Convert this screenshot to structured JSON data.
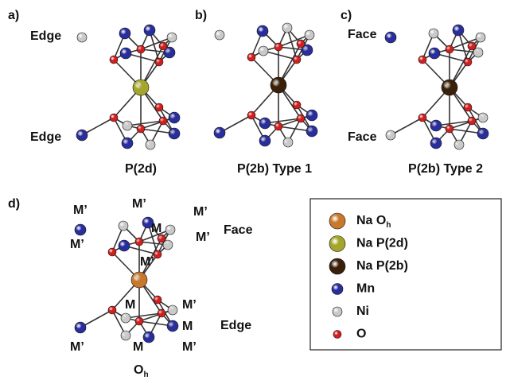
{
  "panels": [
    {
      "label": "a)",
      "caption": "P(2d)",
      "top_label": "Edge",
      "bottom_label": "Edge"
    },
    {
      "label": "b)",
      "caption": "P(2b) Type 1"
    },
    {
      "label": "c)",
      "caption": "P(2b) Type 2",
      "top_label": "Face",
      "bottom_label": "Face"
    },
    {
      "label": "d)",
      "caption": "O",
      "caption_subscript": "h",
      "top_label": "Face",
      "bottom_label": "Edge",
      "site_labels": [
        "M’",
        "M’",
        "M’",
        "M",
        "M’",
        "M’",
        "M’",
        "M",
        "M’",
        "M",
        "M’",
        "M",
        "M’"
      ]
    }
  ],
  "legend": {
    "items": [
      {
        "label": "Na O",
        "subscript": "h"
      },
      {
        "label": "Na P(2d)"
      },
      {
        "label": "Na P(2b)"
      },
      {
        "label": "Mn"
      },
      {
        "label": "Ni"
      },
      {
        "label": "O"
      }
    ]
  }
}
